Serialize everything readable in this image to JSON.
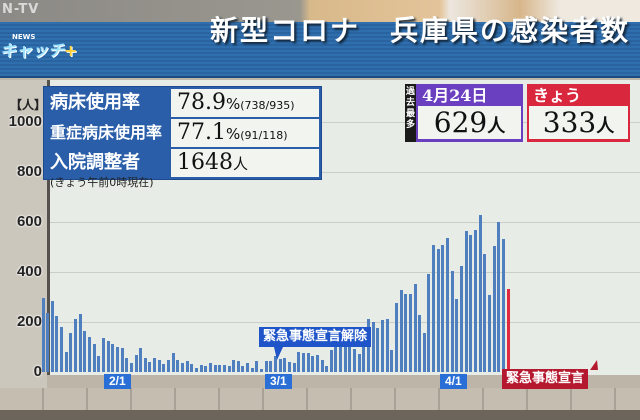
{
  "broadcaster": "N-TV",
  "program_logo": "NEWSキャッチ+",
  "title": "新型コロナ　兵庫県の感染者数",
  "stats": [
    {
      "label": "病床使用率",
      "value": "78.9",
      "unit": "%",
      "detail": "(738/935)"
    },
    {
      "label": "重症病床使用率",
      "value": "77.1",
      "unit": "%",
      "detail": "(91/118)"
    },
    {
      "label": "入院調整者",
      "value": "1648",
      "unit": "人",
      "detail": ""
    }
  ],
  "as_of": "(きょう午前0時現在)",
  "record": {
    "tag": "過去最多",
    "date": "4月24日",
    "value": "629",
    "unit": "人",
    "color": "#6a3fc0"
  },
  "today": {
    "label": "きょう",
    "value": "333",
    "unit": "人",
    "color": "#d9273d"
  },
  "chart_data": {
    "type": "bar",
    "title": "新型コロナ　兵庫県の感染者数",
    "ylabel": "【人】",
    "ylim": [
      0,
      1000
    ],
    "yticks": [
      "0",
      "200",
      "400",
      "600",
      "800",
      "1000"
    ],
    "grid": true,
    "x_start": "1/20",
    "x_end": "4/30",
    "xtick_labels": [
      {
        "label": "2/1",
        "index": 12
      },
      {
        "label": "3/1",
        "index": 40
      },
      {
        "label": "4/1",
        "index": 71
      }
    ],
    "values": [
      296,
      235,
      283,
      223,
      179,
      80,
      155,
      212,
      232,
      163,
      139,
      112,
      63,
      136,
      123,
      113,
      99,
      95,
      55,
      35,
      69,
      95,
      55,
      39,
      57,
      47,
      31,
      48,
      77,
      48,
      35,
      45,
      31,
      17,
      28,
      23,
      37,
      27,
      27,
      29,
      25,
      47,
      43,
      23,
      37,
      17,
      45,
      11,
      45,
      45,
      63,
      52,
      57,
      39,
      36,
      81,
      75,
      77,
      64,
      68,
      47,
      25,
      87,
      120,
      103,
      117,
      167,
      93,
      71,
      176,
      212,
      199,
      175,
      207,
      212,
      87,
      276,
      329,
      311,
      313,
      351,
      227,
      157,
      391,
      507,
      491,
      509,
      536,
      404,
      291,
      423,
      563,
      547,
      567,
      629,
      471,
      307,
      503,
      599,
      532,
      333
    ],
    "bar_color": "#4f7fbf",
    "today_color": "#e0283e",
    "annotations": [
      {
        "label": "緊急事態宣言解除",
        "index": 40,
        "color": "#1f55c8"
      },
      {
        "label": "緊急事態宣言",
        "index": 95,
        "color": "#b5192f"
      }
    ]
  }
}
